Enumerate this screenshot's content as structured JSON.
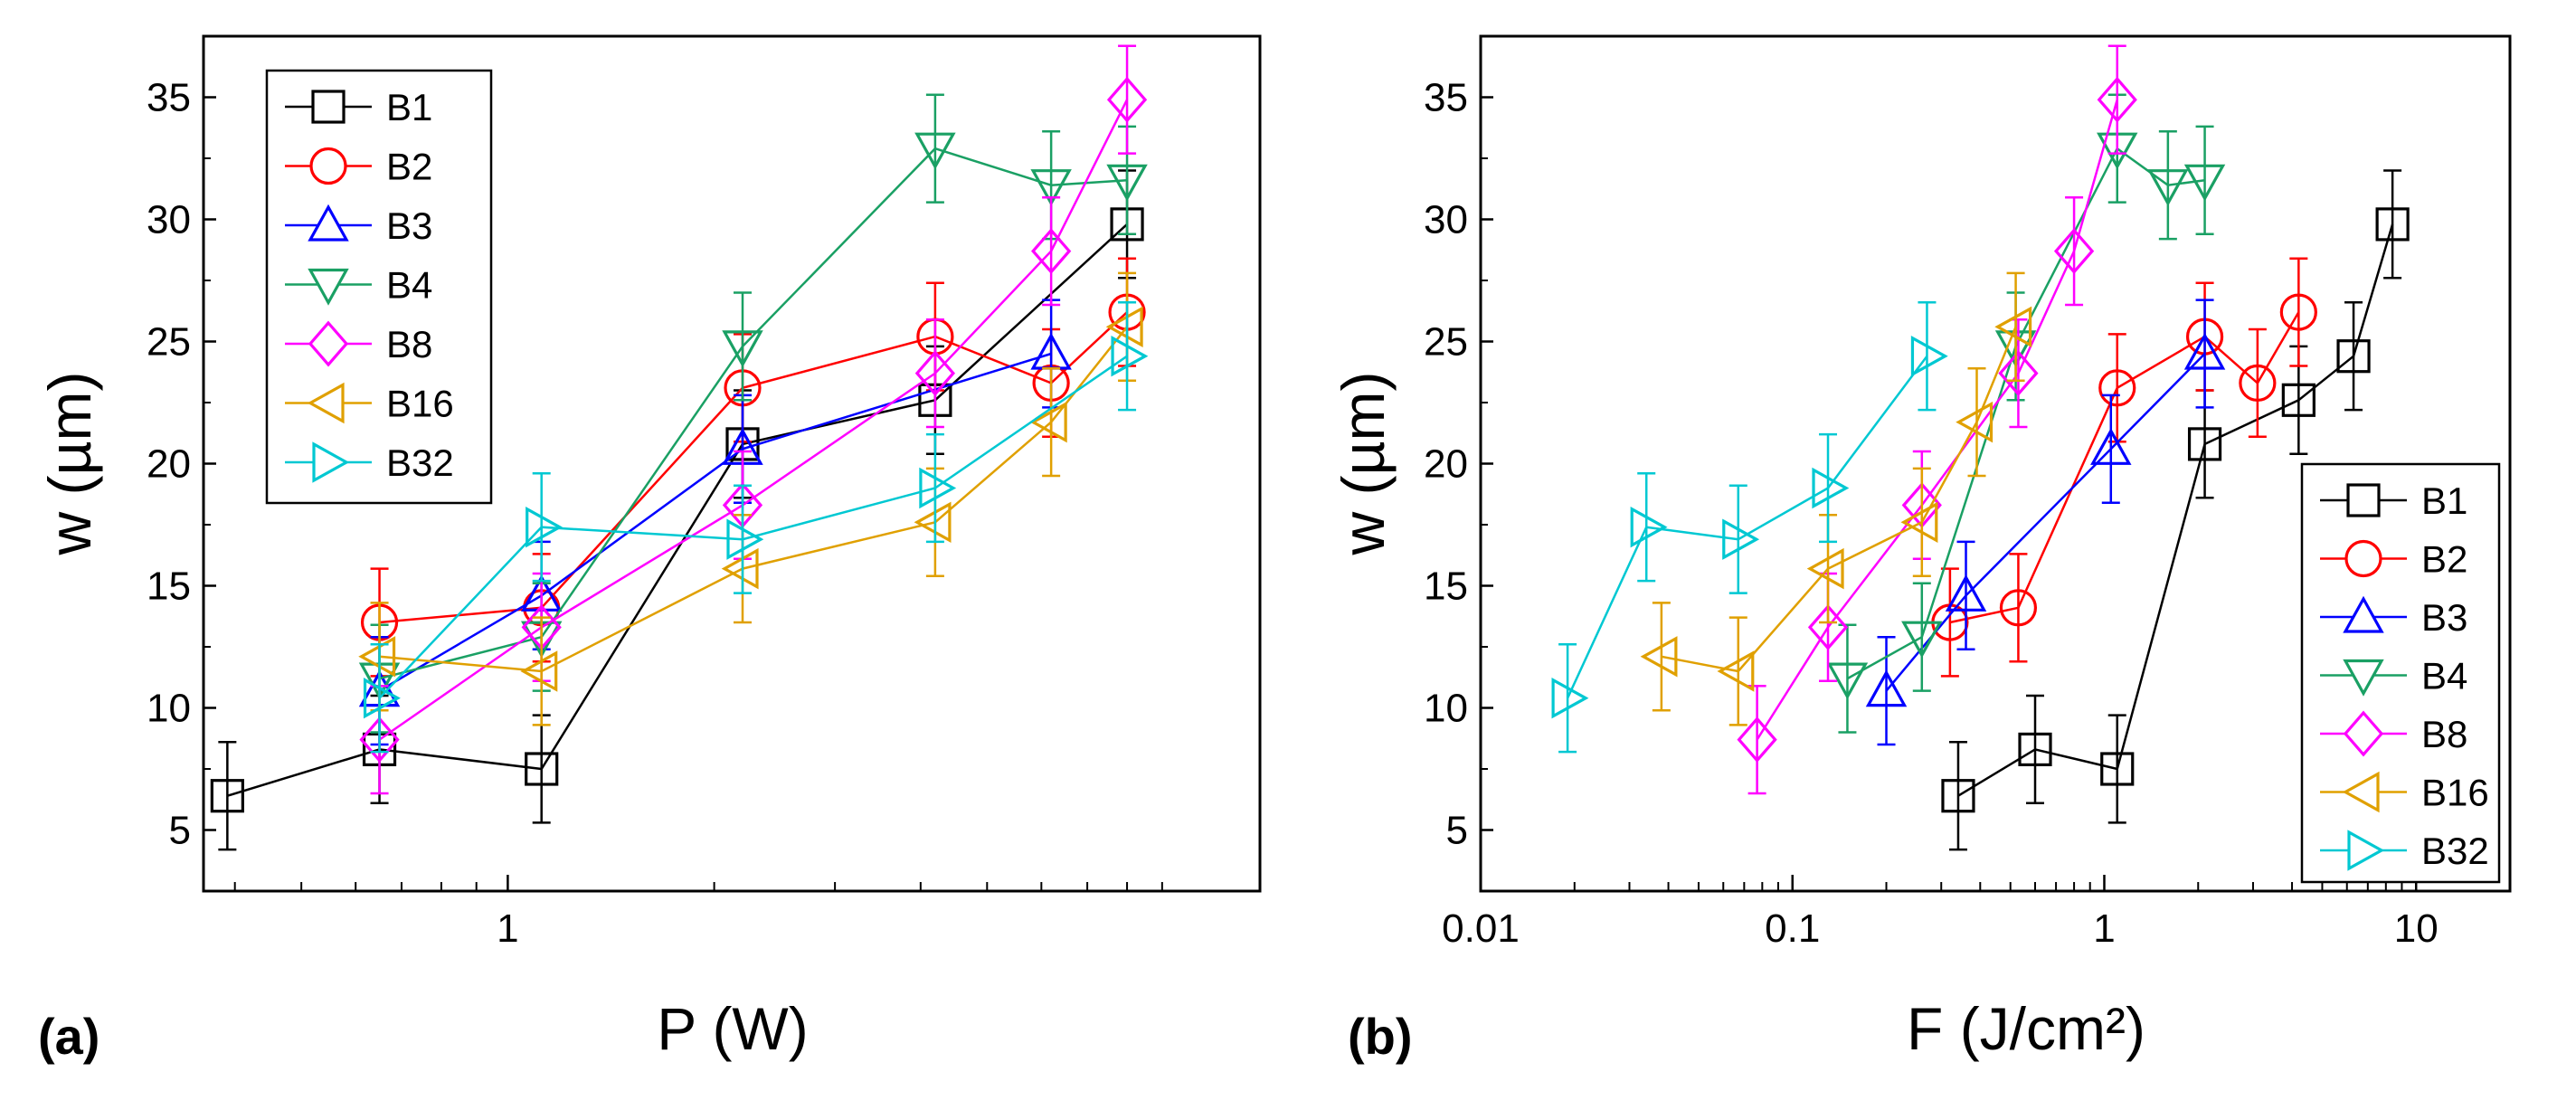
{
  "chart_data": [
    {
      "type": "line",
      "panel_label": "(a)",
      "xlabel": "P (W)",
      "ylabel": "w (µm)",
      "xscale": "log",
      "xlim": [
        0.36,
        12.5
      ],
      "ylim": [
        2.5,
        37.5
      ],
      "xticks": [
        {
          "value": 1,
          "label": "1"
        }
      ],
      "yticks": [
        {
          "value": 5,
          "label": "5"
        },
        {
          "value": 10,
          "label": "10"
        },
        {
          "value": 15,
          "label": "15"
        },
        {
          "value": 20,
          "label": "20"
        },
        {
          "value": 25,
          "label": "25"
        },
        {
          "value": 30,
          "label": "30"
        },
        {
          "value": 35,
          "label": "35"
        }
      ],
      "legend_position": "top-left",
      "series": [
        {
          "name": "B1",
          "color": "#000000",
          "marker": "square",
          "x": [
            0.39,
            0.65,
            1.12,
            2.2,
            4.2,
            8.0
          ],
          "y": [
            6.4,
            8.3,
            7.5,
            20.8,
            22.6,
            29.8
          ],
          "err": [
            2.2,
            2.2,
            2.2,
            2.2,
            2.2,
            2.2
          ]
        },
        {
          "name": "B2",
          "color": "#ff0000",
          "marker": "circle",
          "x": [
            0.65,
            1.12,
            2.2,
            4.2,
            6.2,
            8.0
          ],
          "y": [
            13.5,
            14.1,
            23.1,
            25.2,
            23.3,
            26.2
          ],
          "err": [
            2.2,
            2.2,
            2.2,
            2.2,
            2.2,
            2.2
          ]
        },
        {
          "name": "B3",
          "color": "#0000ff",
          "marker": "triangle-up",
          "x": [
            0.65,
            1.12,
            2.2,
            6.2
          ],
          "y": [
            10.7,
            14.6,
            20.6,
            24.5
          ],
          "err": [
            2.2,
            2.2,
            2.2,
            2.2
          ]
        },
        {
          "name": "B4",
          "color": "#1aa064",
          "marker": "triangle-down",
          "x": [
            0.65,
            1.12,
            2.2,
            4.2,
            6.2,
            8.0
          ],
          "y": [
            11.2,
            12.9,
            24.8,
            32.9,
            31.4,
            31.6
          ],
          "err": [
            2.2,
            2.2,
            2.2,
            2.2,
            2.2,
            2.2
          ]
        },
        {
          "name": "B8",
          "color": "#ff00ff",
          "marker": "diamond",
          "x": [
            0.65,
            1.12,
            2.2,
            4.2,
            6.2,
            8.0
          ],
          "y": [
            8.7,
            13.3,
            18.3,
            23.7,
            28.7,
            34.9
          ],
          "err": [
            2.2,
            2.2,
            2.2,
            2.2,
            2.2,
            2.2
          ]
        },
        {
          "name": "B16",
          "color": "#e0a000",
          "marker": "triangle-left",
          "x": [
            0.65,
            1.12,
            2.2,
            4.2,
            6.2,
            8.0
          ],
          "y": [
            12.1,
            11.5,
            15.7,
            17.6,
            21.7,
            25.6
          ],
          "err": [
            2.2,
            2.2,
            2.2,
            2.2,
            2.2,
            2.2
          ]
        },
        {
          "name": "B32",
          "color": "#00c8d2",
          "marker": "triangle-right",
          "x": [
            0.65,
            1.12,
            2.2,
            4.2,
            8.0
          ],
          "y": [
            10.4,
            17.4,
            16.9,
            19.0,
            24.4
          ],
          "err": [
            2.2,
            2.2,
            2.2,
            2.2,
            2.2
          ]
        }
      ]
    },
    {
      "type": "line",
      "panel_label": "(b)",
      "xlabel": "F (J/cm²)",
      "ylabel": "w (µm)",
      "xscale": "log",
      "xlim": [
        0.01,
        20
      ],
      "ylim": [
        2.5,
        37.5
      ],
      "xticks": [
        {
          "value": 0.01,
          "label": "0.01"
        },
        {
          "value": 0.1,
          "label": "0.1"
        },
        {
          "value": 1,
          "label": "1"
        },
        {
          "value": 10,
          "label": "10"
        }
      ],
      "yticks": [
        {
          "value": 5,
          "label": "5"
        },
        {
          "value": 10,
          "label": "10"
        },
        {
          "value": 15,
          "label": "15"
        },
        {
          "value": 20,
          "label": "20"
        },
        {
          "value": 25,
          "label": "25"
        },
        {
          "value": 30,
          "label": "30"
        },
        {
          "value": 35,
          "label": "35"
        }
      ],
      "legend_position": "bottom-right",
      "series": [
        {
          "name": "B1",
          "color": "#000000",
          "marker": "square",
          "x": [
            0.34,
            0.6,
            1.1,
            2.1,
            4.2,
            6.3,
            8.4
          ],
          "y": [
            6.4,
            8.3,
            7.5,
            20.8,
            22.6,
            24.4,
            29.8
          ],
          "err": [
            2.2,
            2.2,
            2.2,
            2.2,
            2.2,
            2.2,
            2.2
          ]
        },
        {
          "name": "B2",
          "color": "#ff0000",
          "marker": "circle",
          "x": [
            0.32,
            0.53,
            1.1,
            2.1,
            3.1,
            4.2
          ],
          "y": [
            13.5,
            14.1,
            23.1,
            25.2,
            23.3,
            26.2
          ],
          "err": [
            2.2,
            2.2,
            2.2,
            2.2,
            2.2,
            2.2
          ]
        },
        {
          "name": "B3",
          "color": "#0000ff",
          "marker": "triangle-up",
          "x": [
            0.2,
            0.36,
            1.05,
            2.1
          ],
          "y": [
            10.7,
            14.6,
            20.6,
            24.5
          ],
          "err": [
            2.2,
            2.2,
            2.2,
            2.2
          ]
        },
        {
          "name": "B4",
          "color": "#1aa064",
          "marker": "triangle-down",
          "x": [
            0.15,
            0.26,
            0.52,
            1.1,
            1.6,
            2.1
          ],
          "y": [
            11.2,
            12.9,
            24.8,
            32.9,
            31.4,
            31.6
          ],
          "err": [
            2.2,
            2.2,
            2.2,
            2.2,
            2.2,
            2.2
          ]
        },
        {
          "name": "B8",
          "color": "#ff00ff",
          "marker": "diamond",
          "x": [
            0.077,
            0.13,
            0.26,
            0.53,
            0.8,
            1.1
          ],
          "y": [
            8.7,
            13.3,
            18.3,
            23.7,
            28.7,
            34.9
          ],
          "err": [
            2.2,
            2.2,
            2.2,
            2.2,
            2.2,
            2.2
          ]
        },
        {
          "name": "B16",
          "color": "#e0a000",
          "marker": "triangle-left",
          "x": [
            0.038,
            0.067,
            0.13,
            0.26,
            0.39,
            0.52
          ],
          "y": [
            12.1,
            11.5,
            15.7,
            17.6,
            21.7,
            25.6
          ],
          "err": [
            2.2,
            2.2,
            2.2,
            2.2,
            2.2,
            2.2
          ]
        },
        {
          "name": "B32",
          "color": "#00c8d2",
          "marker": "triangle-right",
          "x": [
            0.019,
            0.034,
            0.067,
            0.13,
            0.27
          ],
          "y": [
            10.4,
            17.4,
            16.9,
            19.0,
            24.4
          ],
          "err": [
            2.2,
            2.2,
            2.2,
            2.2,
            2.2
          ]
        }
      ]
    }
  ]
}
